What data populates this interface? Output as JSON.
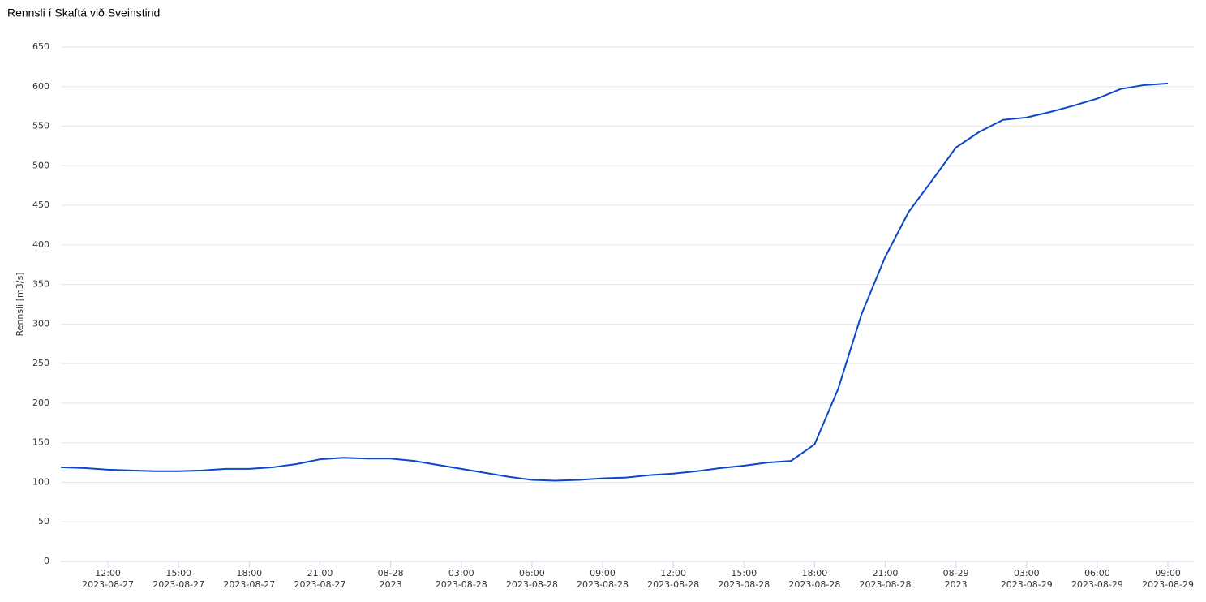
{
  "chart_data": {
    "type": "line",
    "title": "Rennsli í Skaftá við Sveinstind",
    "y_label": "Rennsli [m3/s]",
    "x": [
      "2023-08-27 10:00",
      "2023-08-27 11:00",
      "2023-08-27 12:00",
      "2023-08-27 13:00",
      "2023-08-27 14:00",
      "2023-08-27 15:00",
      "2023-08-27 16:00",
      "2023-08-27 17:00",
      "2023-08-27 18:00",
      "2023-08-27 19:00",
      "2023-08-27 20:00",
      "2023-08-27 21:00",
      "2023-08-27 22:00",
      "2023-08-27 23:00",
      "2023-08-28 00:00",
      "2023-08-28 01:00",
      "2023-08-28 02:00",
      "2023-08-28 03:00",
      "2023-08-28 04:00",
      "2023-08-28 05:00",
      "2023-08-28 06:00",
      "2023-08-28 07:00",
      "2023-08-28 08:00",
      "2023-08-28 09:00",
      "2023-08-28 10:00",
      "2023-08-28 11:00",
      "2023-08-28 12:00",
      "2023-08-28 13:00",
      "2023-08-28 14:00",
      "2023-08-28 15:00",
      "2023-08-28 16:00",
      "2023-08-28 17:00",
      "2023-08-28 18:00",
      "2023-08-28 19:00",
      "2023-08-28 20:00",
      "2023-08-28 21:00",
      "2023-08-28 22:00",
      "2023-08-28 23:00",
      "2023-08-29 00:00",
      "2023-08-29 01:00",
      "2023-08-29 02:00",
      "2023-08-29 03:00",
      "2023-08-29 04:00",
      "2023-08-29 05:00",
      "2023-08-29 06:00",
      "2023-08-29 07:00",
      "2023-08-29 08:00",
      "2023-08-29 09:00"
    ],
    "series": [
      {
        "name": "Rennsli",
        "color": "#0b47c9",
        "values": [
          119,
          118,
          116,
          115,
          114,
          114,
          115,
          117,
          117,
          119,
          123,
          129,
          131,
          130,
          130,
          127,
          122,
          117,
          112,
          107,
          103,
          102,
          103,
          105,
          106,
          109,
          111,
          114,
          118,
          121,
          125,
          127,
          148,
          218,
          313,
          385,
          442,
          482,
          523,
          543,
          558,
          561,
          568,
          576,
          585,
          597,
          602,
          604
        ]
      }
    ],
    "xlim": [
      "2023-08-27 10:00",
      "2023-08-29 10:06"
    ],
    "xticks": [
      {
        "value": "2023-08-27 12:00",
        "label": [
          "12:00",
          "2023-08-27"
        ]
      },
      {
        "value": "2023-08-27 15:00",
        "label": [
          "15:00",
          "2023-08-27"
        ]
      },
      {
        "value": "2023-08-27 18:00",
        "label": [
          "18:00",
          "2023-08-27"
        ]
      },
      {
        "value": "2023-08-27 21:00",
        "label": [
          "21:00",
          "2023-08-27"
        ]
      },
      {
        "value": "2023-08-28 00:00",
        "label": [
          "08-28",
          "2023"
        ]
      },
      {
        "value": "2023-08-28 03:00",
        "label": [
          "03:00",
          "2023-08-28"
        ]
      },
      {
        "value": "2023-08-28 06:00",
        "label": [
          "06:00",
          "2023-08-28"
        ]
      },
      {
        "value": "2023-08-28 09:00",
        "label": [
          "09:00",
          "2023-08-28"
        ]
      },
      {
        "value": "2023-08-28 12:00",
        "label": [
          "12:00",
          "2023-08-28"
        ]
      },
      {
        "value": "2023-08-28 15:00",
        "label": [
          "15:00",
          "2023-08-28"
        ]
      },
      {
        "value": "2023-08-28 18:00",
        "label": [
          "18:00",
          "2023-08-28"
        ]
      },
      {
        "value": "2023-08-28 21:00",
        "label": [
          "21:00",
          "2023-08-28"
        ]
      },
      {
        "value": "2023-08-29 00:00",
        "label": [
          "08-29",
          "2023"
        ]
      },
      {
        "value": "2023-08-29 03:00",
        "label": [
          "03:00",
          "2023-08-29"
        ]
      },
      {
        "value": "2023-08-29 06:00",
        "label": [
          "06:00",
          "2023-08-29"
        ]
      },
      {
        "value": "2023-08-29 09:00",
        "label": [
          "09:00",
          "2023-08-29"
        ]
      }
    ],
    "ylim": [
      0,
      650
    ],
    "yticks": [
      0,
      50,
      100,
      150,
      200,
      250,
      300,
      350,
      400,
      450,
      500,
      550,
      600,
      650
    ],
    "grid": true
  }
}
